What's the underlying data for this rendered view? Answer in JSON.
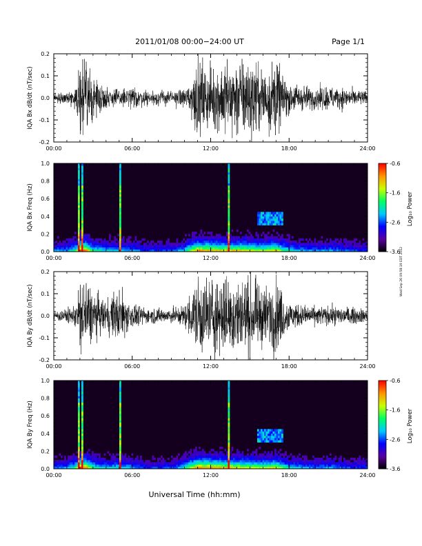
{
  "header": {
    "title": "2011/01/08  00:00−24:00 UT",
    "page": "Page 1/1"
  },
  "footer": {
    "xlabel": "Universal Time (hh:mm)"
  },
  "stamp": "Wed Sep 26 09:58:19 EDT 2012",
  "colors": {
    "axis": "#000000",
    "trace": "#000000",
    "spectrogram_background": "#14001e"
  },
  "chart_data": [
    {
      "type": "line",
      "ylabel": "IQA Bx dB/dt (nT/sec)",
      "x_ticks": [
        "00:00",
        "06:00",
        "12:00",
        "18:00",
        "24:00"
      ],
      "xlim_hours": [
        0,
        24
      ],
      "ylim": [
        -0.2,
        0.2
      ],
      "y_ticks": [
        "-0.2",
        "-0.1",
        "0.0",
        "0.1",
        "0.2"
      ],
      "series": [
        {
          "envelope_hours": [
            0,
            1,
            1.75,
            2,
            2.5,
            3,
            4,
            5,
            6,
            7,
            8,
            9,
            10,
            10.5,
            11,
            12,
            13,
            14,
            15,
            16,
            17,
            17.5,
            18,
            19,
            20,
            21,
            22,
            23,
            24
          ],
          "amplitude": [
            0.03,
            0.035,
            0.06,
            0.25,
            0.25,
            0.12,
            0.07,
            0.06,
            0.07,
            0.05,
            0.05,
            0.045,
            0.06,
            0.12,
            0.25,
            0.18,
            0.25,
            0.25,
            0.25,
            0.2,
            0.25,
            0.15,
            0.1,
            0.08,
            0.07,
            0.08,
            0.07,
            0.05,
            0.045
          ]
        }
      ]
    },
    {
      "type": "heatmap",
      "ylabel": "IQA Bx Freq (Hz)",
      "x_ticks": [
        "00:00",
        "06:00",
        "12:00",
        "18:00",
        "24:00"
      ],
      "xlim_hours": [
        0,
        24
      ],
      "ylim": [
        0.0,
        1.0
      ],
      "y_ticks": [
        "0.0",
        "0.2",
        "0.4",
        "0.6",
        "0.8",
        "1.0"
      ],
      "colorbar": {
        "label": "Log₁₀ Power",
        "ticks": [
          "-3.6",
          "-2.6",
          "-1.6",
          "-0.6"
        ],
        "range": [
          -3.6,
          -0.6
        ],
        "colors": [
          "#000000",
          "#5a00a0",
          "#0000ff",
          "#00c8ff",
          "#00ff64",
          "#c8ff00",
          "#ff9600",
          "#ff0000"
        ]
      },
      "features": {
        "activity_hours": [
          0,
          1,
          1.75,
          2,
          2.5,
          3,
          4,
          5,
          6,
          7,
          8,
          9,
          10,
          10.5,
          11,
          12,
          13,
          14,
          15,
          16,
          17,
          17.5,
          18,
          19,
          20,
          21,
          22,
          23,
          24
        ],
        "activity": [
          0.35,
          0.4,
          0.6,
          1.0,
          0.9,
          0.55,
          0.45,
          0.45,
          0.4,
          0.3,
          0.3,
          0.3,
          0.45,
          0.7,
          0.9,
          0.85,
          0.8,
          0.8,
          0.75,
          0.7,
          0.8,
          0.6,
          0.5,
          0.4,
          0.35,
          0.4,
          0.35,
          0.3,
          0.3
        ],
        "spike_hours": [
          1.9,
          2.2,
          5.1,
          13.4
        ],
        "emission_hours": [
          15.5,
          17.5
        ],
        "emission_hz": [
          0.3,
          0.45
        ]
      }
    },
    {
      "type": "line",
      "ylabel": "IQA By dB/dt (nT/sec)",
      "x_ticks": [
        "00:00",
        "06:00",
        "12:00",
        "18:00",
        "24:00"
      ],
      "xlim_hours": [
        0,
        24
      ],
      "ylim": [
        -0.2,
        0.2
      ],
      "y_ticks": [
        "-0.2",
        "-0.1",
        "0.0",
        "0.1",
        "0.2"
      ],
      "series": [
        {
          "envelope_hours": [
            0,
            1,
            1.75,
            2,
            2.5,
            3,
            4,
            5,
            6,
            7,
            8,
            9,
            10,
            10.5,
            11,
            12,
            13,
            14,
            15,
            16,
            17,
            17.5,
            18,
            19,
            20,
            21,
            22,
            23,
            24
          ],
          "amplitude": [
            0.035,
            0.04,
            0.08,
            0.25,
            0.25,
            0.15,
            0.1,
            0.18,
            0.08,
            0.05,
            0.05,
            0.05,
            0.07,
            0.15,
            0.25,
            0.25,
            0.25,
            0.25,
            0.25,
            0.18,
            0.25,
            0.15,
            0.09,
            0.07,
            0.06,
            0.06,
            0.06,
            0.05,
            0.045
          ]
        }
      ]
    },
    {
      "type": "heatmap",
      "ylabel": "IQA By Freq (Hz)",
      "x_ticks": [
        "00:00",
        "06:00",
        "12:00",
        "18:00",
        "24:00"
      ],
      "xlim_hours": [
        0,
        24
      ],
      "ylim": [
        0.0,
        1.0
      ],
      "y_ticks": [
        "0.0",
        "0.2",
        "0.4",
        "0.6",
        "0.8",
        "1.0"
      ],
      "colorbar": {
        "label": "Log₁₀ Power",
        "ticks": [
          "-3.6",
          "-2.6",
          "-1.6",
          "-0.6"
        ],
        "range": [
          -3.6,
          -0.6
        ],
        "colors": [
          "#000000",
          "#5a00a0",
          "#0000ff",
          "#00c8ff",
          "#00ff64",
          "#c8ff00",
          "#ff9600",
          "#ff0000"
        ]
      },
      "features": {
        "activity_hours": [
          0,
          1,
          1.75,
          2,
          2.5,
          3,
          4,
          5,
          6,
          7,
          8,
          9,
          10,
          10.5,
          11,
          12,
          13,
          14,
          15,
          16,
          17,
          17.5,
          18,
          19,
          20,
          21,
          22,
          23,
          24
        ],
        "activity": [
          0.35,
          0.4,
          0.6,
          1.0,
          0.9,
          0.55,
          0.45,
          0.5,
          0.4,
          0.3,
          0.3,
          0.3,
          0.5,
          0.75,
          0.95,
          0.9,
          0.85,
          0.8,
          0.75,
          0.7,
          0.8,
          0.6,
          0.5,
          0.4,
          0.35,
          0.4,
          0.35,
          0.3,
          0.3
        ],
        "spike_hours": [
          1.9,
          2.2,
          5.1,
          13.4
        ],
        "emission_hours": [
          15.5,
          17.5
        ],
        "emission_hz": [
          0.3,
          0.45
        ]
      }
    }
  ]
}
